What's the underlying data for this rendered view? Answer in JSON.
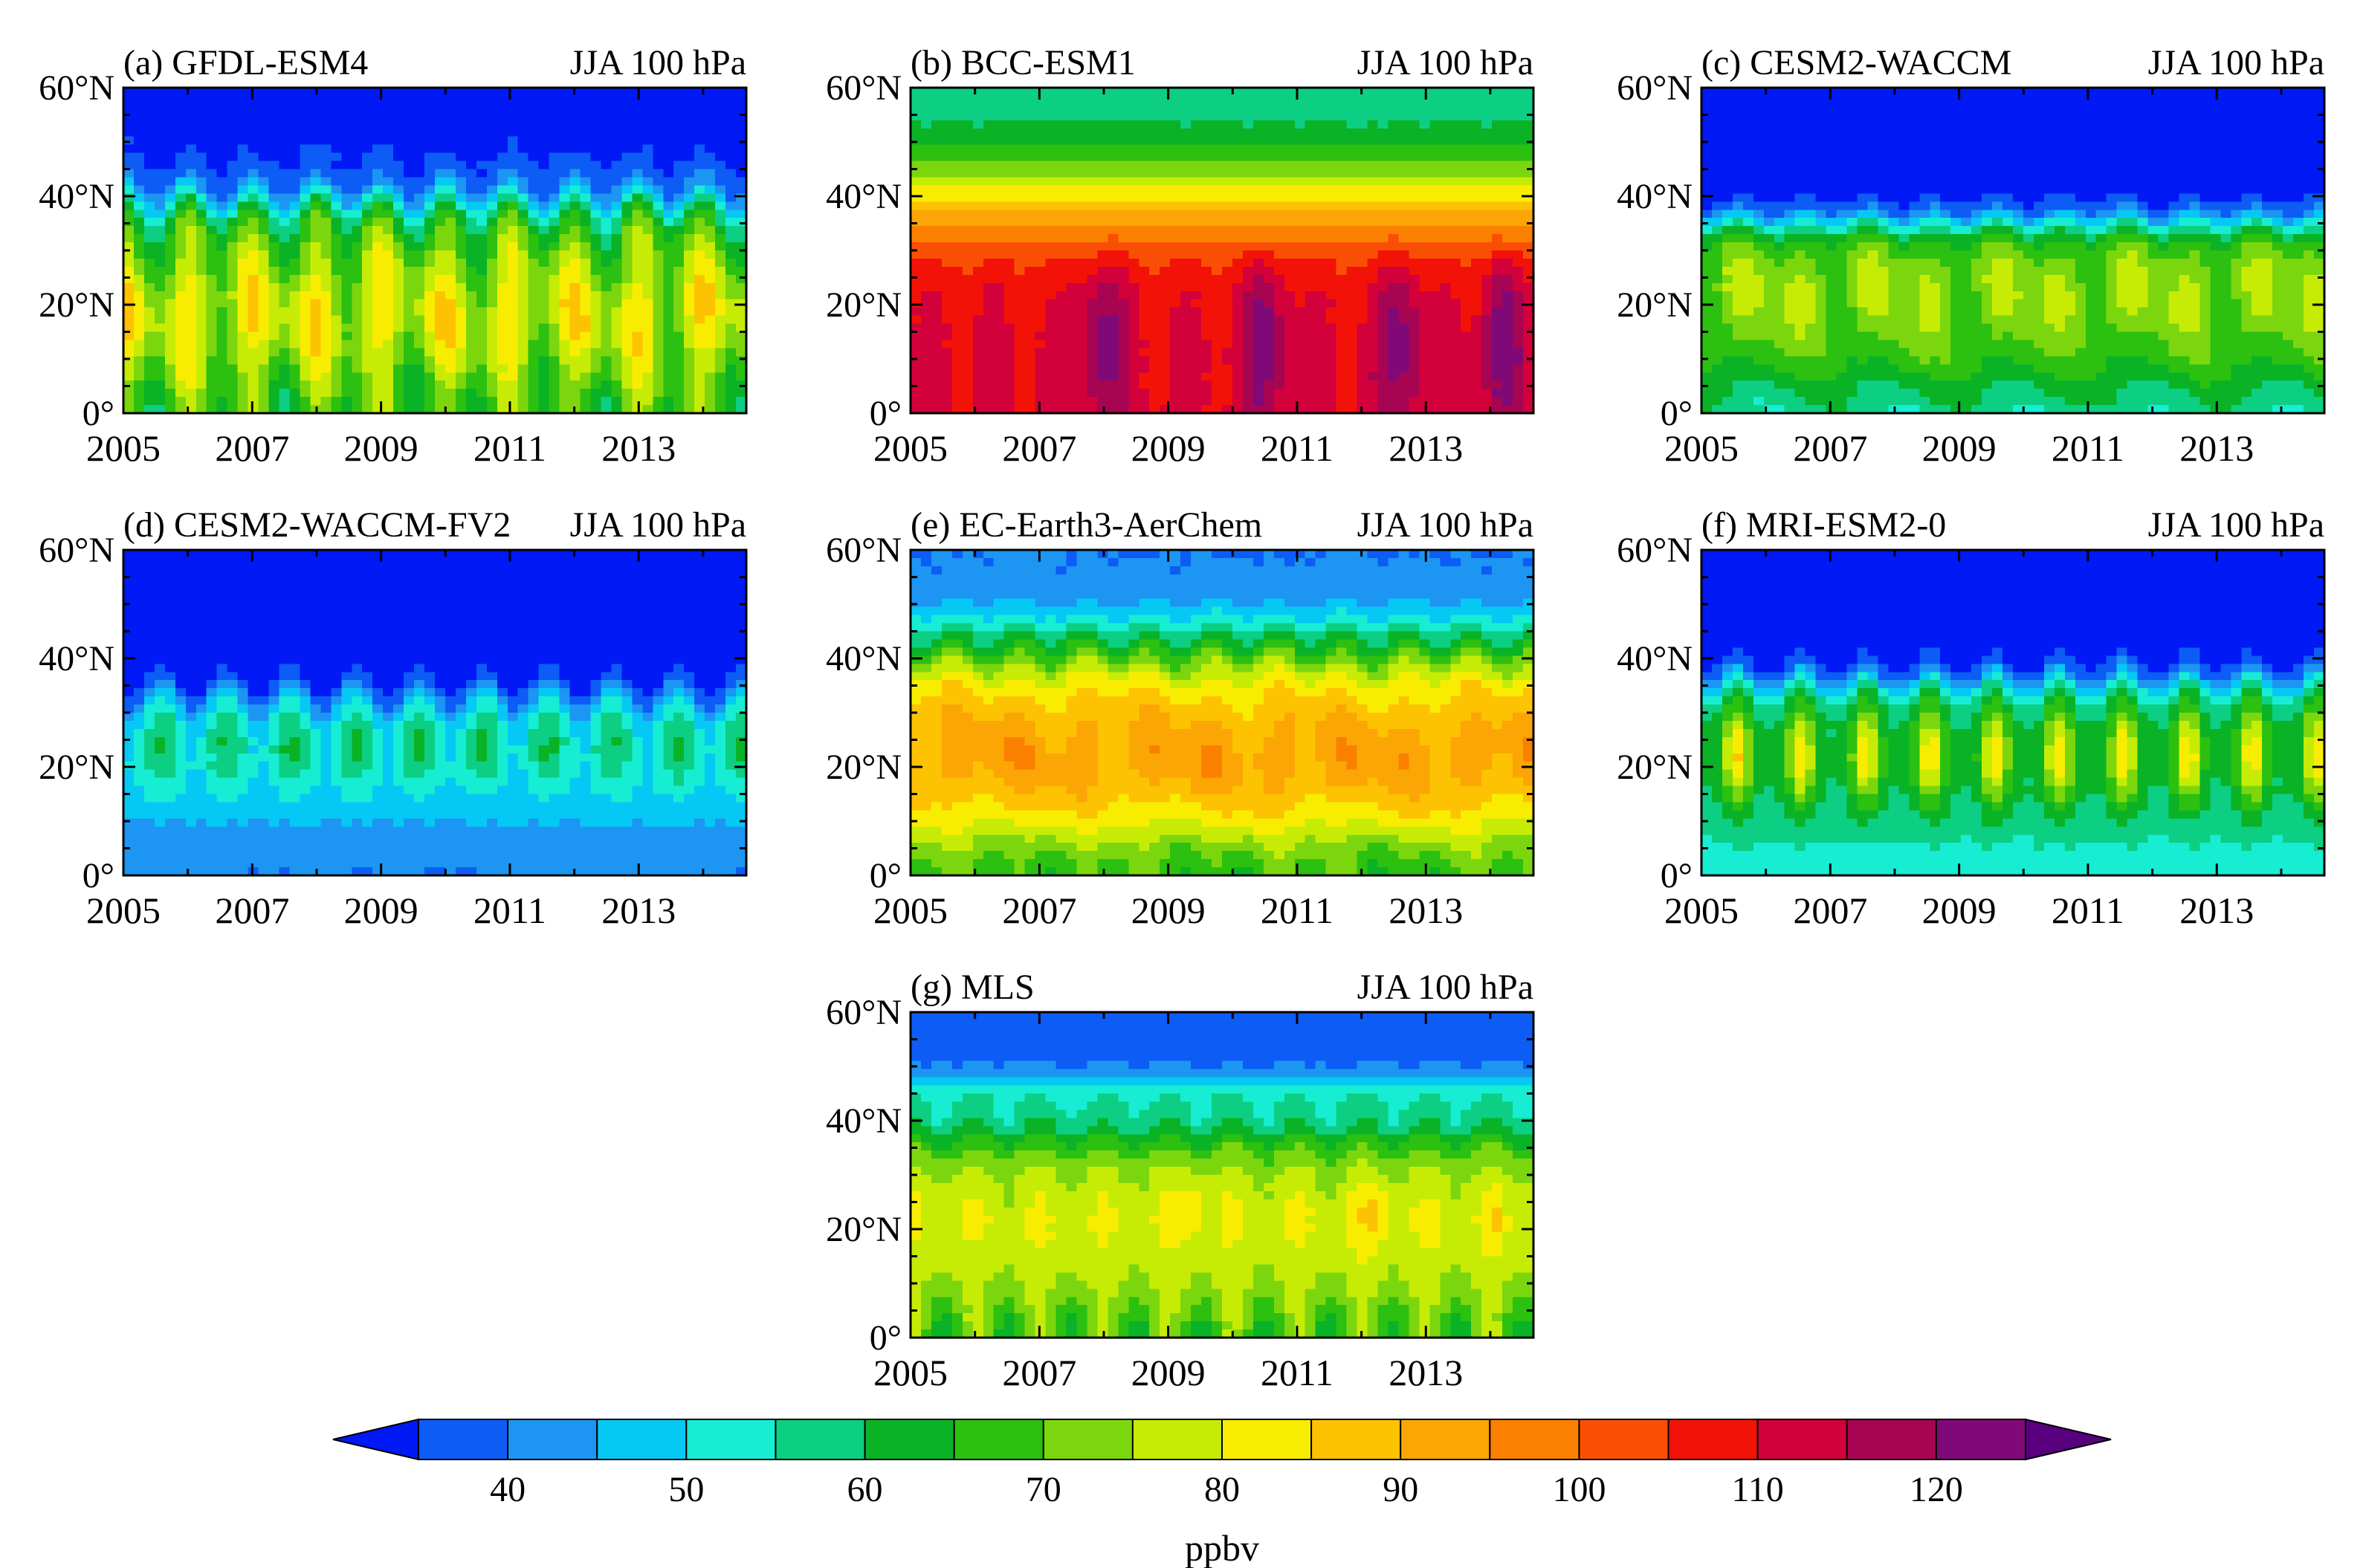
{
  "figure": {
    "colorbar_unit": "ppbv",
    "colorbar_levels": [
      35,
      40,
      45,
      50,
      55,
      60,
      65,
      70,
      75,
      80,
      85,
      90,
      95,
      100,
      105,
      110,
      115,
      120,
      125
    ],
    "colorbar_labels": [
      "40",
      "50",
      "60",
      "70",
      "80",
      "90",
      "100",
      "110",
      "120"
    ],
    "colorbar_label_values": [
      40,
      50,
      60,
      70,
      80,
      90,
      100,
      110,
      120
    ],
    "colorbar_colors": [
      "#0019f5",
      "#0d5cf5",
      "#1c96f2",
      "#06c8f5",
      "#16edd3",
      "#0ccf83",
      "#0ab226",
      "#2cc010",
      "#7cd60e",
      "#c6ec06",
      "#f8ed01",
      "#fdc202",
      "#fba605",
      "#fc8000",
      "#f94f05",
      "#f31208",
      "#d2003b",
      "#a70452",
      "#800978",
      "#58007e"
    ]
  },
  "chart_data": [
    {
      "type": "heatmap",
      "panel": "a",
      "title": "(a) GFDL-ESM4",
      "subtitle": "JJA 100 hPa",
      "model": "gfdl",
      "x_range": [
        2005,
        2014.67
      ],
      "y_range": [
        0,
        60
      ],
      "x_ticks": [
        "2005",
        "2007",
        "2009",
        "2011",
        "2013"
      ],
      "y_ticks": [
        "0°",
        "20°N",
        "40°N",
        "60°N"
      ],
      "approx_values": {
        "30N-60N_max": 36,
        "tropics_summer_peak": 88,
        "equator_winter_min": 62
      }
    },
    {
      "type": "heatmap",
      "panel": "b",
      "title": "(b) BCC-ESM1",
      "subtitle": "JJA 100 hPa",
      "model": "bcc",
      "x_range": [
        2005,
        2014.67
      ],
      "y_range": [
        0,
        60
      ],
      "x_ticks": [
        "2005",
        "2007",
        "2009",
        "2011",
        "2013"
      ],
      "y_ticks": [
        "0°",
        "20°N",
        "40°N",
        "60°N"
      ],
      "approx_values": {
        "60N": 53,
        "40N": 90,
        "tropics_peak": 125,
        "tropics_base": 108
      }
    },
    {
      "type": "heatmap",
      "panel": "c",
      "title": "(c) CESM2-WACCM",
      "subtitle": "JJA 100 hPa",
      "model": "cesm",
      "x_range": [
        2005,
        2014.67
      ],
      "y_range": [
        0,
        60
      ],
      "x_ticks": [
        "2005",
        "2007",
        "2009",
        "2011",
        "2013"
      ],
      "y_ticks": [
        "0°",
        "20°N",
        "40°N",
        "60°N"
      ],
      "approx_values": {
        "60N": 32,
        "tropics_summer_peak": 80,
        "equator": 55
      }
    },
    {
      "type": "heatmap",
      "panel": "d",
      "title": "(d) CESM2-WACCM-FV2",
      "subtitle": "JJA 100 hPa",
      "model": "cesmfv2",
      "x_range": [
        2005,
        2014.67
      ],
      "y_range": [
        0,
        60
      ],
      "x_ticks": [
        "2005",
        "2007",
        "2009",
        "2011",
        "2013"
      ],
      "y_ticks": [
        "0°",
        "20°N",
        "40°N",
        "60°N"
      ],
      "approx_values": {
        "60N": 32,
        "tropics_summer_peak": 62,
        "equator": 40
      }
    },
    {
      "type": "heatmap",
      "panel": "e",
      "title": "(e) EC-Earth3-AerChem",
      "subtitle": "JJA 100 hPa",
      "model": "ecearth",
      "x_range": [
        2005,
        2014.67
      ],
      "y_range": [
        0,
        60
      ],
      "x_ticks": [
        "2005",
        "2007",
        "2009",
        "2011",
        "2013"
      ],
      "y_ticks": [
        "0°",
        "20°N",
        "40°N",
        "60°N"
      ],
      "approx_values": {
        "60N": 42,
        "tropics_summer_peak": 96,
        "equator_winter_min": 65
      }
    },
    {
      "type": "heatmap",
      "panel": "f",
      "title": "(f) MRI-ESM2-0",
      "subtitle": "JJA 100 hPa",
      "model": "mri",
      "x_range": [
        2005,
        2014.67
      ],
      "y_range": [
        0,
        60
      ],
      "x_ticks": [
        "2005",
        "2007",
        "2009",
        "2011",
        "2013"
      ],
      "y_ticks": [
        "0°",
        "20°N",
        "40°N",
        "60°N"
      ],
      "approx_values": {
        "60N": 32,
        "tropics_summer_peak": 84,
        "equator": 52
      }
    },
    {
      "type": "heatmap",
      "panel": "g",
      "title": "(g) MLS",
      "subtitle": "JJA 100 hPa",
      "model": "mls",
      "x_range": [
        2005,
        2014.67
      ],
      "y_range": [
        0,
        60
      ],
      "x_ticks": [
        "2005",
        "2007",
        "2009",
        "2011",
        "2013"
      ],
      "y_ticks": [
        "0°",
        "20°N",
        "40°N",
        "60°N"
      ],
      "approx_values": {
        "60N": 38,
        "tropics_summer_peak": 90,
        "tropics_base": 80,
        "equator_winter_min": 63
      }
    }
  ]
}
